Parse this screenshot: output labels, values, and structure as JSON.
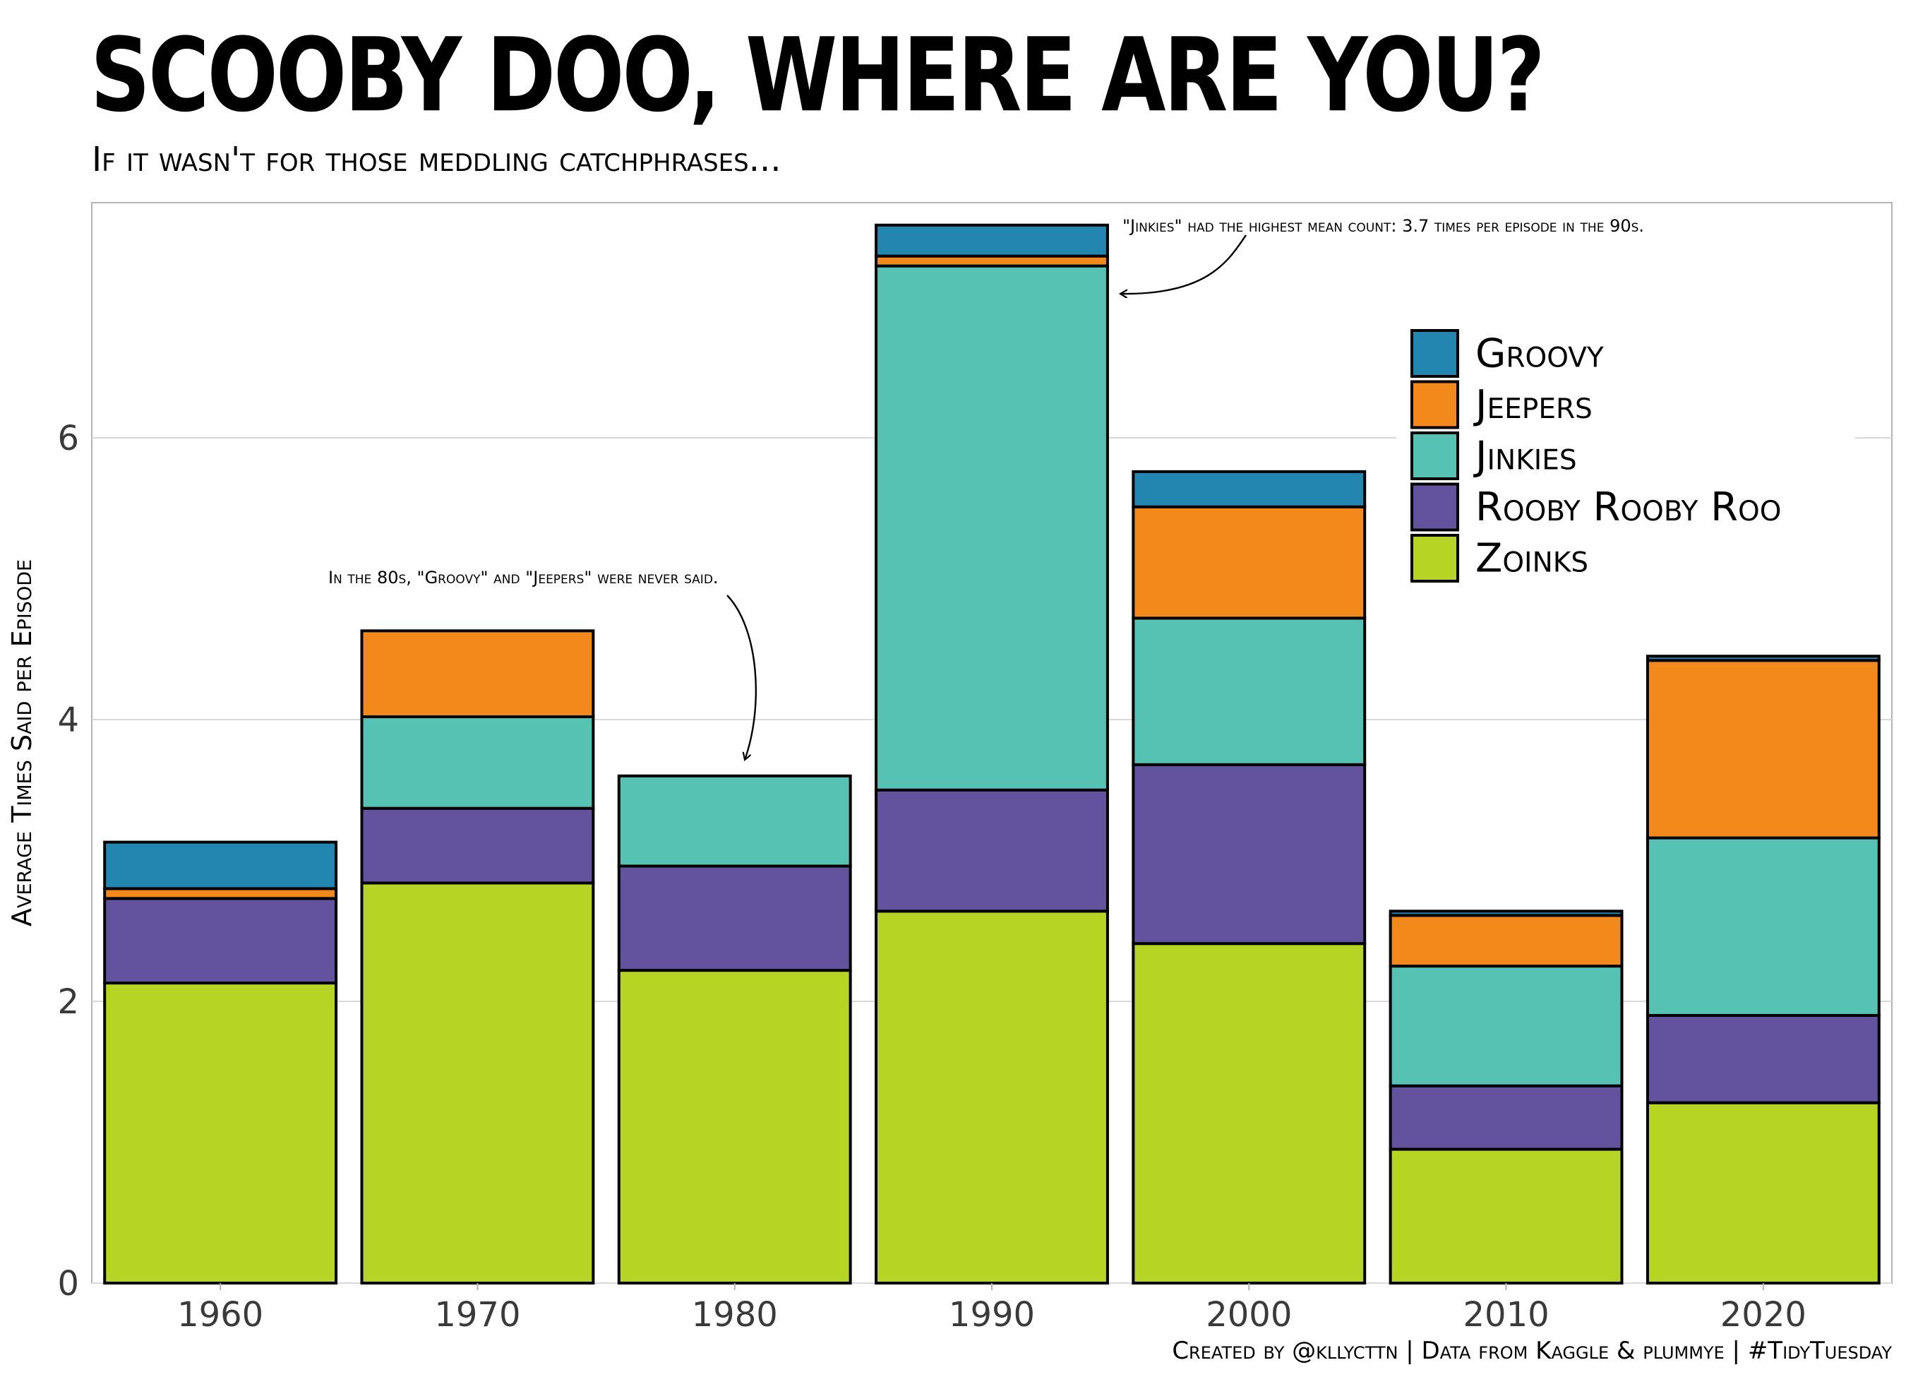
{
  "title": "Scooby Doo, Where Are You?",
  "subtitle": "If it wasn't for those meddling catchphrases...",
  "caption": "Created by @kllycttn | Data from Kaggle & plummye | #TidyTuesday",
  "colors": {
    "Groovy": "#2386b1",
    "Jeepers": "#f4891b",
    "Jinkies": "#56c2b4",
    "Rooby Rooby Roo": "#63539e",
    "Zoinks": "#b5d424",
    "outline": "#000000",
    "grid": "#d9d9d9",
    "panel_border": "#b3b3b3"
  },
  "chart_data": {
    "type": "bar",
    "stacked": true,
    "categories": [
      "1960",
      "1970",
      "1980",
      "1990",
      "2000",
      "2010",
      "2020"
    ],
    "series": [
      {
        "name": "Zoinks",
        "values": [
          2.13,
          2.84,
          2.22,
          2.64,
          2.41,
          0.95,
          1.28
        ]
      },
      {
        "name": "Rooby Rooby Roo",
        "values": [
          0.6,
          0.53,
          0.74,
          0.86,
          1.27,
          0.45,
          0.62
        ]
      },
      {
        "name": "Jinkies",
        "values": [
          0.0,
          0.65,
          0.64,
          3.72,
          1.04,
          0.85,
          1.26
        ]
      },
      {
        "name": "Jeepers",
        "values": [
          0.07,
          0.61,
          0.0,
          0.07,
          0.79,
          0.36,
          1.26
        ]
      },
      {
        "name": "Groovy",
        "values": [
          0.33,
          0.0,
          0.0,
          0.22,
          0.25,
          0.03,
          0.03
        ]
      }
    ],
    "legend_order": [
      "Groovy",
      "Jeepers",
      "Jinkies",
      "Rooby Rooby Roo",
      "Zoinks"
    ],
    "legend_position": "top-right",
    "xlabel": "",
    "ylabel": "Average Times Said per Episode",
    "yticks": [
      0,
      2,
      4,
      6
    ],
    "ylim": [
      0,
      7.7
    ],
    "grid": true,
    "annotations": [
      {
        "text": "In the 80s, \"Groovy\" and \"Jeepers\" were never said.",
        "category": "1980"
      },
      {
        "text": "\"Jinkies\" had the highest mean count: 3.7 times per episode in the 90s.",
        "category": "1990"
      }
    ]
  }
}
